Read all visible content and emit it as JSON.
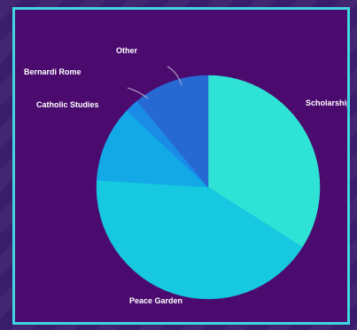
{
  "chart_data": {
    "type": "pie",
    "title": "",
    "categories": [
      "Scholarship",
      "Peace Garden",
      "Catholic Studies",
      "Bernardi Rome",
      "Other"
    ],
    "values": [
      34,
      42,
      11,
      2,
      11
    ],
    "colors": [
      "#2fe2d6",
      "#16c8e0",
      "#12a9e6",
      "#1a8ce8",
      "#2769d2"
    ],
    "start_angle_deg": 0,
    "direction": "clockwise",
    "legend": "none"
  },
  "labels": {
    "scholarship": "Scholarship",
    "peace_garden": "Peace Garden",
    "catholic_studies": "Catholic Studies",
    "bernardi_rome": "Bernardi Rome",
    "other": "Other"
  }
}
